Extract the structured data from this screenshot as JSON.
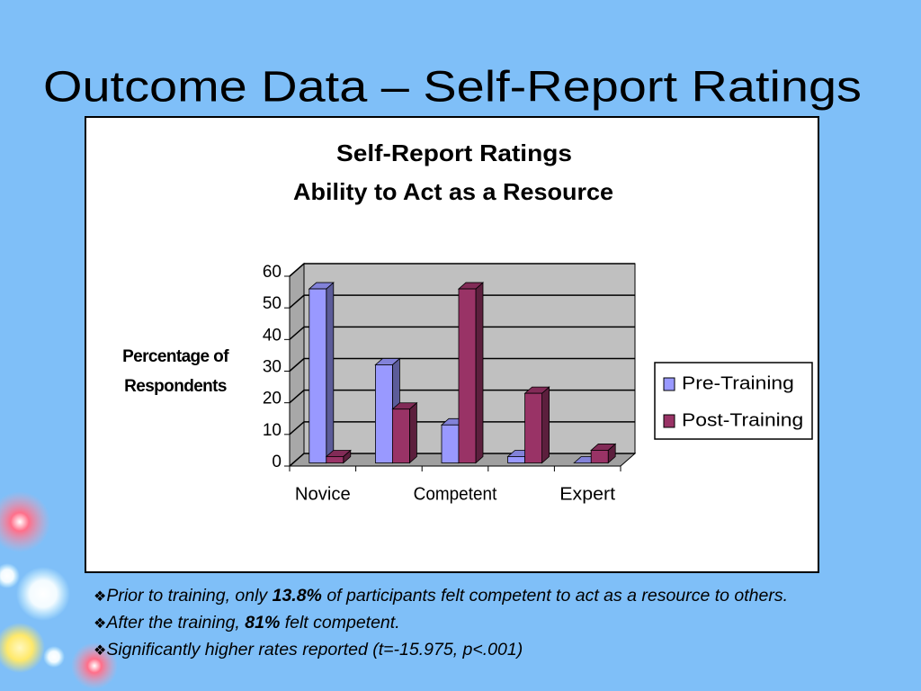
{
  "slide": {
    "title": "Outcome Data – Self-Report Ratings",
    "bullets": [
      [
        {
          "text": "Prior to training, only "
        },
        {
          "text": "13.8%",
          "bold": true
        },
        {
          "text": " of participants felt competent to act as a resource to others."
        }
      ],
      [
        {
          "text": "After the training, "
        },
        {
          "text": "81%",
          "bold": true
        },
        {
          "text": " felt competent."
        }
      ],
      [
        {
          "text": "Significantly higher rates reported (t=-15.975, p<.001)"
        }
      ]
    ]
  },
  "chart_data": {
    "type": "bar3d",
    "title": "Self-Report Ratings",
    "subtitle": "Ability to Act as a Resource",
    "ylabel": "Percentage of Respondents",
    "categories": [
      "Novice",
      null,
      "Competent",
      null,
      "Expert"
    ],
    "series": [
      {
        "name": "Pre-Training",
        "color": "#9999ff",
        "values": [
          55,
          31,
          12,
          2,
          0
        ]
      },
      {
        "name": "Post-Training",
        "color": "#993366",
        "values": [
          2,
          17,
          55,
          22,
          4
        ]
      }
    ],
    "ylim": [
      0,
      60
    ],
    "yticks": [
      0,
      10,
      20,
      30,
      40,
      50,
      60
    ],
    "grid": true,
    "legend": "right"
  }
}
